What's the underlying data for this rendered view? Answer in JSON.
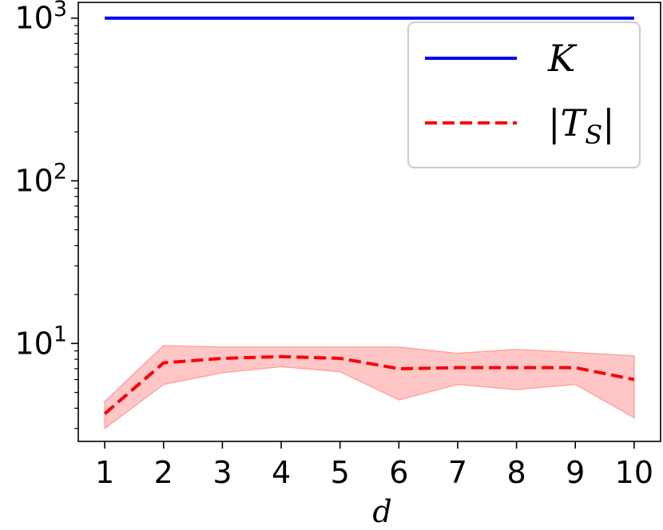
{
  "chart_data": {
    "type": "line",
    "title": "",
    "xlabel": "d",
    "ylabel": "",
    "yscale": "log",
    "xlim": [
      0.55,
      10.45
    ],
    "ylim": [
      2.5,
      1250
    ],
    "x": [
      1,
      2,
      3,
      4,
      5,
      6,
      7,
      8,
      9,
      10
    ],
    "x_tick_labels": [
      "1",
      "2",
      "3",
      "4",
      "5",
      "6",
      "7",
      "8",
      "9",
      "10"
    ],
    "y_tick_labels": [
      {
        "value": 10,
        "base": "10",
        "exp": "1"
      },
      {
        "value": 100,
        "base": "10",
        "exp": "2"
      },
      {
        "value": 1000,
        "base": "10",
        "exp": "3"
      }
    ],
    "grid": false,
    "legend_position": "top-right",
    "series": [
      {
        "name": "K",
        "style": "solid",
        "color": "#0000ff",
        "values": [
          1000,
          1000,
          1000,
          1000,
          1000,
          1000,
          1000,
          1000,
          1000,
          1000
        ]
      },
      {
        "name": "|T_S|",
        "style": "dashed",
        "color": "#ff0000",
        "values": [
          3.7,
          7.6,
          8.1,
          8.3,
          8.1,
          7.0,
          7.1,
          7.1,
          7.1,
          6.0
        ],
        "band_lower": [
          3.0,
          5.6,
          6.6,
          7.2,
          6.7,
          4.5,
          5.6,
          5.2,
          5.6,
          3.5
        ],
        "band_upper": [
          4.4,
          9.7,
          9.5,
          9.5,
          9.5,
          9.5,
          8.7,
          9.2,
          8.8,
          8.4
        ],
        "band_color": "#ffb3b3"
      }
    ],
    "legend": {
      "entries": [
        {
          "label": "K",
          "series_index": 0
        },
        {
          "label_prefix": "|",
          "label_main": "T",
          "label_sub": "S",
          "label_suffix": "|",
          "series_index": 1
        }
      ]
    }
  }
}
